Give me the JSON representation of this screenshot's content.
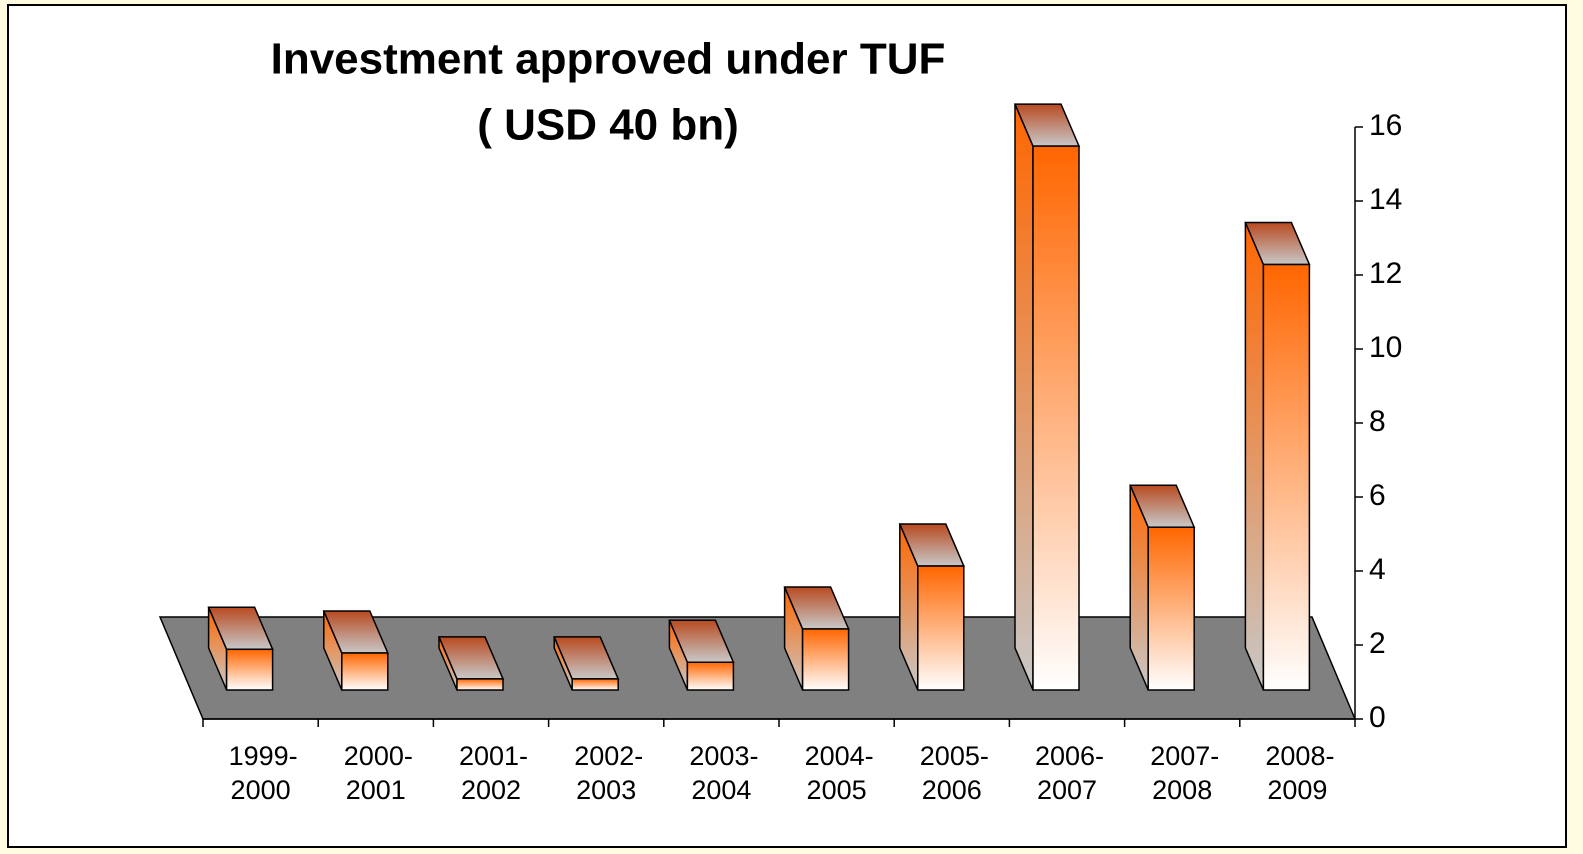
{
  "chart_data": {
    "type": "bar3d",
    "title": "Investment approved under TUF",
    "subtitle": "( USD 40 bn)",
    "categories": [
      "1999-2000",
      "2000-2001",
      "2001-2002",
      "2002-2003",
      "2003-2004",
      "2004-2005",
      "2005-2006",
      "2006-2007",
      "2007-2008",
      "2008-2009"
    ],
    "values": [
      1.1,
      1.0,
      0.3,
      0.3,
      0.75,
      1.65,
      3.35,
      14.7,
      4.4,
      11.5
    ],
    "color": "#ff6600",
    "floor_color": "#808080",
    "ylim": [
      0,
      16
    ],
    "yticks": [
      0,
      2,
      4,
      6,
      8,
      10,
      12,
      14,
      16
    ]
  }
}
